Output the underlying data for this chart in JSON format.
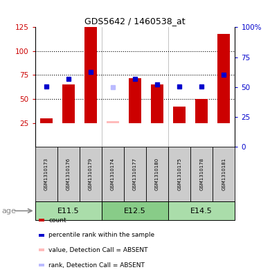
{
  "title": "GDS5642 / 1460538_at",
  "samples": [
    "GSM1310173",
    "GSM1310176",
    "GSM1310179",
    "GSM1310174",
    "GSM1310177",
    "GSM1310180",
    "GSM1310175",
    "GSM1310178",
    "GSM1310181"
  ],
  "age_groups": [
    {
      "label": "E11.5",
      "start": 0,
      "end": 3
    },
    {
      "label": "E12.5",
      "start": 3,
      "end": 6
    },
    {
      "label": "E14.5",
      "start": 6,
      "end": 9
    }
  ],
  "red_bars": [
    30,
    65,
    125,
    27,
    72,
    65,
    42,
    50,
    118
  ],
  "blue_squares": [
    63,
    71,
    78,
    null,
    71,
    65,
    63,
    63,
    75
  ],
  "light_blue_squares": [
    null,
    null,
    null,
    62,
    null,
    null,
    null,
    null,
    null
  ],
  "absent_samples": [
    3
  ],
  "ylim_left": [
    0,
    125
  ],
  "ylim_right": [
    0,
    100
  ],
  "yticks_left": [
    25,
    50,
    75,
    100,
    125
  ],
  "yticks_right": [
    0,
    25,
    50,
    75,
    100
  ],
  "ytick_labels_right": [
    "0",
    "25",
    "50",
    "75",
    "100%"
  ],
  "bar_color": "#cc0000",
  "blue_color": "#0000cc",
  "pink_color": "#ffbbbb",
  "light_blue_color": "#bbbbff",
  "bg_color": "#ffffff",
  "bar_width": 0.55,
  "bar_baseline": 25,
  "age_label": "age",
  "age_group_colors": [
    "#aaddaa",
    "#88cc88",
    "#aaddaa"
  ],
  "sample_box_color": "#cccccc",
  "legend_items": [
    {
      "color": "#cc0000",
      "label": "count"
    },
    {
      "color": "#0000cc",
      "label": "percentile rank within the sample"
    },
    {
      "color": "#ffbbbb",
      "label": "value, Detection Call = ABSENT"
    },
    {
      "color": "#bbbbff",
      "label": "rank, Detection Call = ABSENT"
    }
  ]
}
